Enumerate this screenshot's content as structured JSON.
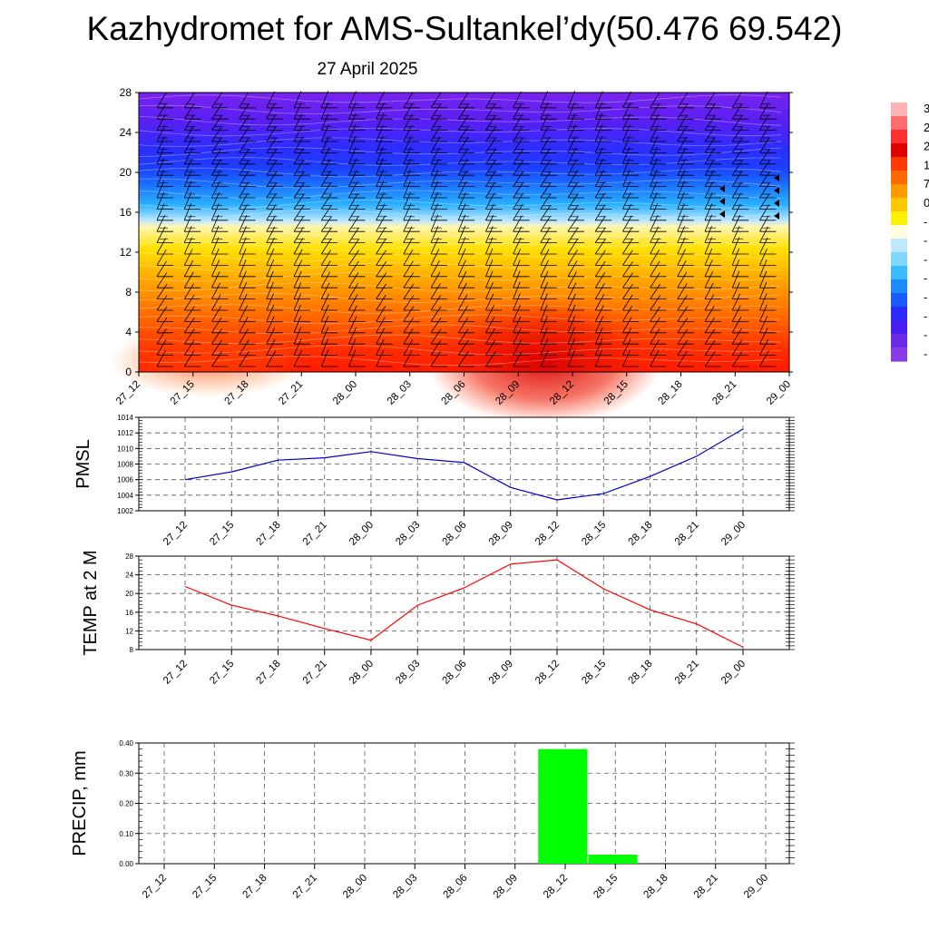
{
  "header": {
    "title": "Kazhydromet for AMS-Sultankel’dy(50.476 69.542)",
    "subtitle": "27 April 2025"
  },
  "chart_data": [
    {
      "type": "heatmap",
      "title": "",
      "xlabel": "",
      "ylabel": "",
      "x_ticks": [
        "27_12",
        "27_15",
        "27_18",
        "27_21",
        "28_00",
        "28_03",
        "28_06",
        "28_09",
        "28_12",
        "28_15",
        "28_18",
        "28_21",
        "29_00"
      ],
      "y_ticks": [
        0,
        4,
        8,
        12,
        16,
        20,
        24,
        28
      ],
      "ylim": [
        0,
        28
      ],
      "colorbar_visible_labels": [
        "3",
        "2",
        "2",
        "1",
        "7",
        "0",
        "-",
        "-",
        "-",
        "-",
        "-",
        "-",
        "-",
        "-"
      ],
      "colorbar_colors": [
        "#ffb3b3",
        "#ff6f6f",
        "#ff3030",
        "#e00000",
        "#ff3a00",
        "#ff6a00",
        "#ff9a00",
        "#ffc800",
        "#fff000",
        "#fffde0",
        "#bfe8ff",
        "#7fd6ff",
        "#3cbcff",
        "#1a8cff",
        "#1a5cff",
        "#2b2bff",
        "#4a20f0",
        "#6a2ce8",
        "#8a3ae6"
      ],
      "wind_barbs": "wind barbs at each level and time step"
    },
    {
      "type": "line",
      "title": "",
      "ylabel": "PMSL",
      "x": [
        "27_12",
        "27_15",
        "27_18",
        "27_21",
        "28_00",
        "28_03",
        "28_06",
        "28_09",
        "28_12",
        "28_15",
        "28_18",
        "28_21",
        "29_00"
      ],
      "series": [
        {
          "values": [
            1006.0,
            1007.0,
            1008.5,
            1008.8,
            1009.6,
            1008.7,
            1008.2,
            1005.0,
            1003.4,
            1004.2,
            1006.4,
            1009.0,
            1012.5
          ],
          "color": "#0000cc"
        }
      ],
      "y_ticks": [
        1002,
        1004,
        1006,
        1008,
        1010,
        1012,
        1014
      ],
      "ylim": [
        1002,
        1014
      ],
      "grid": true
    },
    {
      "type": "line",
      "title": "",
      "ylabel": "TEMP at 2 M",
      "x": [
        "27_12",
        "27_15",
        "27_18",
        "27_21",
        "28_00",
        "28_03",
        "28_06",
        "28_09",
        "28_12",
        "28_15",
        "28_18",
        "28_21",
        "29_00"
      ],
      "series": [
        {
          "values": [
            21.5,
            17.5,
            15.2,
            12.5,
            10.0,
            17.5,
            21.2,
            26.3,
            27.2,
            21.0,
            16.5,
            13.5,
            8.5
          ],
          "color": "#ff0000"
        }
      ],
      "y_ticks": [
        8,
        12,
        16,
        20,
        24,
        28
      ],
      "ylim": [
        8,
        28
      ],
      "grid": true
    },
    {
      "type": "bar",
      "title": "",
      "ylabel": "PRECIP, mm",
      "categories": [
        "27_12",
        "27_15",
        "27_18",
        "27_21",
        "28_00",
        "28_03",
        "28_06",
        "28_09",
        "28_12",
        "28_15",
        "28_18",
        "28_21",
        "29_00"
      ],
      "values": [
        0,
        0,
        0,
        0,
        0,
        0,
        0,
        0,
        0.38,
        0.03,
        0,
        0,
        0
      ],
      "color": "#00ff00",
      "y_ticks": [
        "0.00",
        "0.10",
        "0.20",
        "0.30",
        "0.40"
      ],
      "ylim": [
        0,
        0.4
      ],
      "grid": true
    }
  ]
}
